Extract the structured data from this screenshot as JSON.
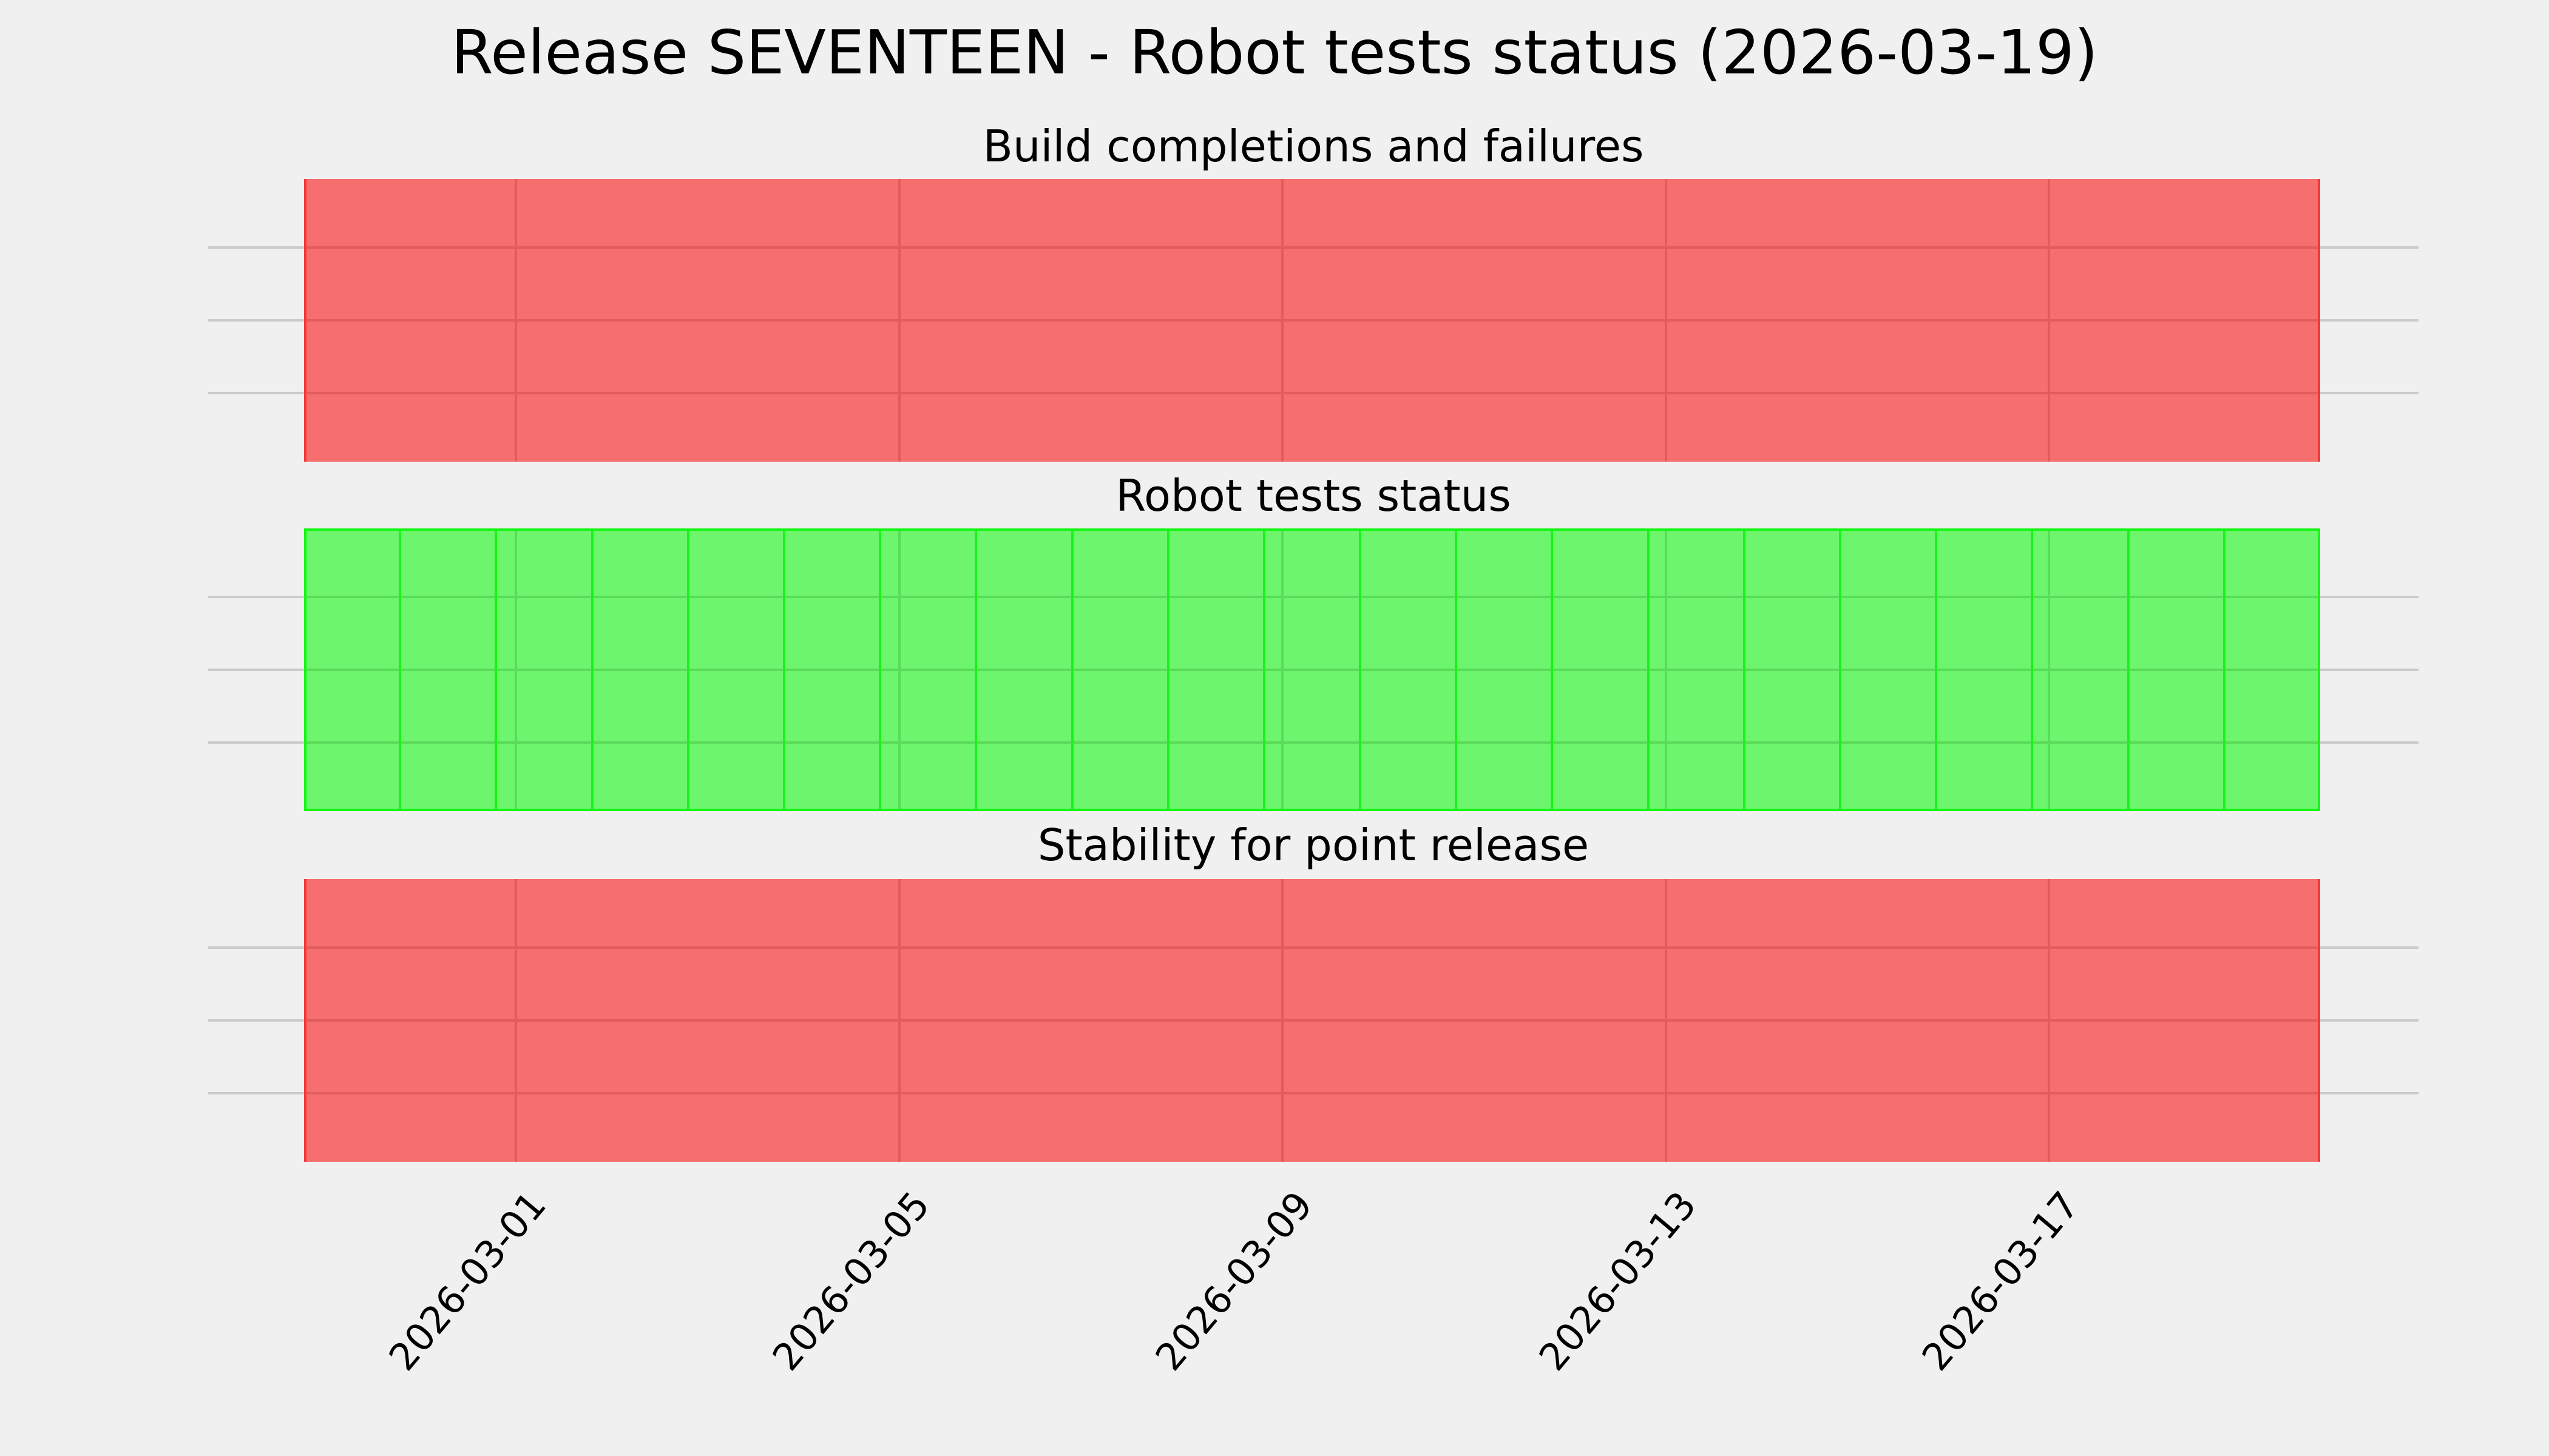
{
  "figure": {
    "title": "Release SEVENTEEN - Robot tests status (2026-03-19)",
    "background_color": "#F0F0F0",
    "grid_color": "#CBCBCB",
    "text_color": "#000000"
  },
  "panels": [
    {
      "id": "build",
      "title": "Build completions and failures",
      "status": "failing",
      "fill_color": "#F66E6E",
      "grid_overlay_color": "#E25C5C",
      "edge_color": "#F13A3A",
      "has_day_lines": false
    },
    {
      "id": "robot",
      "title": "Robot tests status",
      "status": "passing",
      "fill_color": "#6DF56D",
      "grid_overlay_color": "#5ADB5A",
      "edge_color": "#17F517",
      "has_day_lines": true
    },
    {
      "id": "stability",
      "title": "Stability for point release",
      "status": "failing",
      "fill_color": "#F66E6E",
      "grid_overlay_color": "#E25C5C",
      "edge_color": "#F13A3A",
      "has_day_lines": false
    }
  ],
  "x_axis": {
    "tick_labels": [
      "2026-03-01",
      "2026-03-05",
      "2026-03-09",
      "2026-03-13",
      "2026-03-17"
    ]
  },
  "chart_data": {
    "type": "area",
    "title": "Release SEVENTEEN - Robot tests status (2026-03-19)",
    "x": [
      "2026-02-27",
      "2026-02-28",
      "2026-03-01",
      "2026-03-02",
      "2026-03-03",
      "2026-03-04",
      "2026-03-05",
      "2026-03-06",
      "2026-03-07",
      "2026-03-08",
      "2026-03-09",
      "2026-03-10",
      "2026-03-11",
      "2026-03-12",
      "2026-03-13",
      "2026-03-14",
      "2026-03-15",
      "2026-03-16",
      "2026-03-17",
      "2026-03-18",
      "2026-03-19"
    ],
    "x_tick_labels": [
      "2026-03-01",
      "2026-03-05",
      "2026-03-09",
      "2026-03-13",
      "2026-03-17"
    ],
    "series": [
      {
        "name": "Build completions and failures",
        "status": "failing",
        "color": "#F66E6E",
        "values": [
          1,
          1,
          1,
          1,
          1,
          1,
          1,
          1,
          1,
          1,
          1,
          1,
          1,
          1,
          1,
          1,
          1,
          1,
          1,
          1,
          1
        ]
      },
      {
        "name": "Robot tests status",
        "status": "passing",
        "color": "#6DF56D",
        "values": [
          1,
          1,
          1,
          1,
          1,
          1,
          1,
          1,
          1,
          1,
          1,
          1,
          1,
          1,
          1,
          1,
          1,
          1,
          1,
          1,
          1
        ]
      },
      {
        "name": "Stability for point release",
        "status": "failing",
        "color": "#F66E6E",
        "values": [
          1,
          1,
          1,
          1,
          1,
          1,
          1,
          1,
          1,
          1,
          1,
          1,
          1,
          1,
          1,
          1,
          1,
          1,
          1,
          1,
          1
        ]
      }
    ],
    "grid": true,
    "legend": false,
    "notes": "Three stacked subplots; each shows a constant full-height daily status band for every day in range (red = failing, green = passing)."
  }
}
